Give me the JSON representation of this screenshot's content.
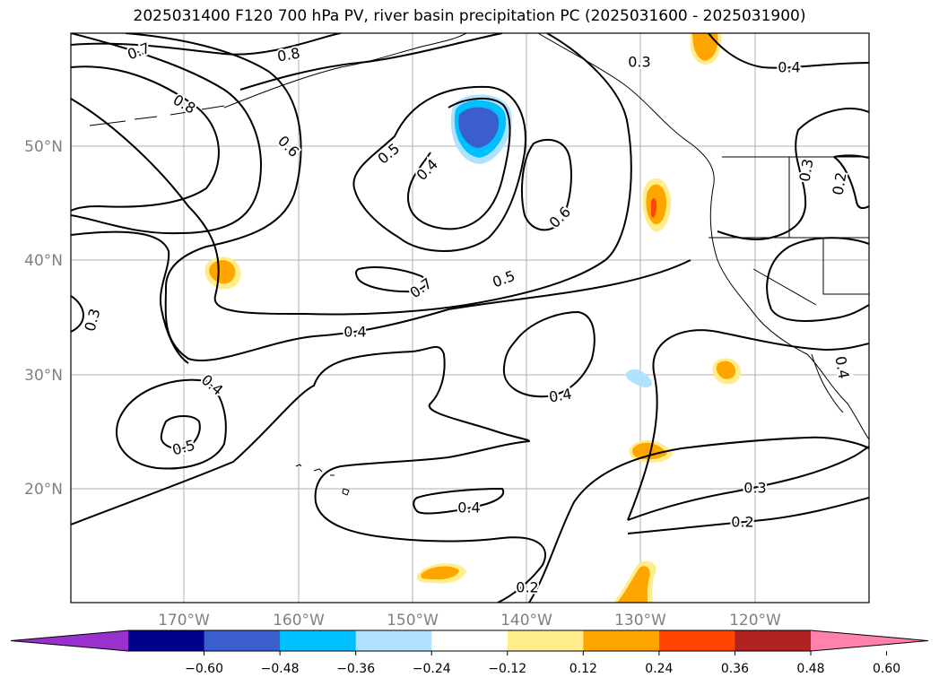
{
  "title": "2025031400 F120 700 hPa PV, river basin precipitation PC (2025031600 - 2025031900)",
  "map": {
    "lat_labels": [
      "50°N",
      "40°N",
      "30°N",
      "20°N"
    ],
    "lon_labels": [
      "170°W",
      "160°W",
      "150°W",
      "140°W",
      "130°W",
      "120°W"
    ],
    "contour_labels": [
      "0.7",
      "0.8",
      "0.8",
      "0.6",
      "0.5",
      "0.4",
      "0.3",
      "0.4",
      "0.3",
      "0.2",
      "0.6",
      "0.7",
      "0.5",
      "0.4",
      "0.3",
      "0.4",
      "0.4",
      "0.5",
      "0.4",
      "0.3",
      "0.2",
      "0.2",
      "0.4"
    ]
  },
  "colorbar": {
    "tick_labels": [
      "−0.60",
      "−0.48",
      "−0.36",
      "−0.24",
      "−0.12",
      "0.12",
      "0.24",
      "0.36",
      "0.48",
      "0.60"
    ],
    "colors": [
      "#9932cc",
      "#00008b",
      "#3a5fcd",
      "#00bfff",
      "#b0e2ff",
      "#ffffff",
      "#ffec8b",
      "#ffa500",
      "#ff4500",
      "#b22222",
      "#ff82ab"
    ]
  }
}
